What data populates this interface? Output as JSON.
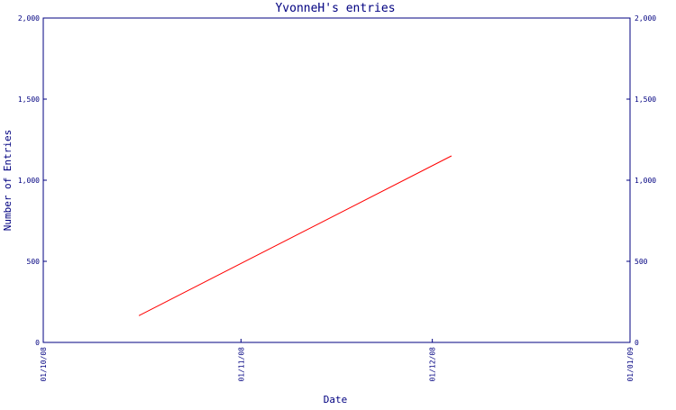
{
  "chart_data": {
    "type": "line",
    "title": "YvonneH's entries",
    "xlabel": "Date",
    "ylabel": "Number of Entries",
    "ylim": [
      0,
      2000
    ],
    "y_ticks": [
      0,
      500,
      1000,
      1500,
      2000
    ],
    "y_tick_labels": [
      "0",
      "500",
      "1,000",
      "1,500",
      "2,000"
    ],
    "x_range": [
      "2008-10-01",
      "2009-01-01"
    ],
    "x_ticks": [
      "2008-10-01",
      "2008-11-01",
      "2008-12-01",
      "2009-01-01"
    ],
    "x_tick_labels": [
      "01/10/08",
      "01/11/08",
      "01/12/08",
      "01/01/09"
    ],
    "right_axis": true,
    "grid": false,
    "colors": {
      "axis": "#000080",
      "line": "#ff0000"
    },
    "series": [
      {
        "x": [
          "2008-10-16",
          "2008-12-04"
        ],
        "values": [
          165,
          1150
        ]
      }
    ]
  }
}
